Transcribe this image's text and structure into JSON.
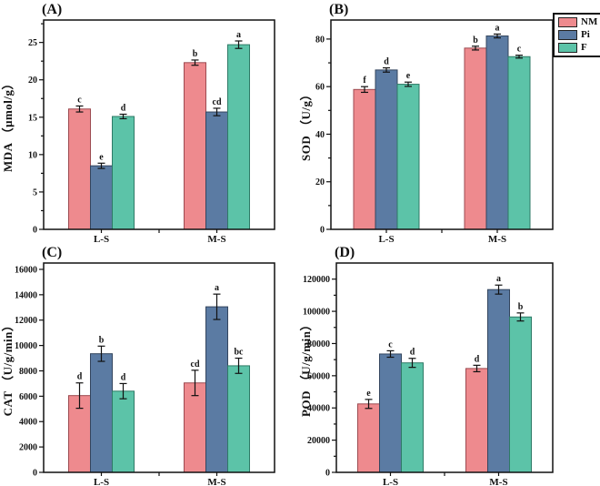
{
  "legend": {
    "entries": [
      {
        "label": "NM",
        "color": "#EE8A8E",
        "edge": "#9c4a50"
      },
      {
        "label": "Pi",
        "color": "#5B7BA3",
        "edge": "#33455e"
      },
      {
        "label": "F",
        "color": "#5CC3A8",
        "edge": "#2e7a66"
      }
    ],
    "position": "top-right"
  },
  "colors": {
    "axis": "#111111",
    "error_bar": "#111111",
    "background": "#ffffff"
  },
  "chart_data": [
    {
      "panel_label": "(A)",
      "type": "bar",
      "title": "",
      "ylabel": "MDA （μmol/g）",
      "xlabel": "",
      "categories": [
        "L-S",
        "M-S"
      ],
      "series": [
        {
          "name": "NM",
          "values": [
            16.1,
            22.3
          ],
          "errors": [
            0.4,
            0.35
          ],
          "letters": [
            "c",
            "b"
          ]
        },
        {
          "name": "Pi",
          "values": [
            8.5,
            15.7
          ],
          "errors": [
            0.35,
            0.5
          ],
          "letters": [
            "e",
            "cd"
          ]
        },
        {
          "name": "F",
          "values": [
            15.1,
            24.7
          ],
          "errors": [
            0.3,
            0.5
          ],
          "letters": [
            "d",
            "a"
          ]
        }
      ],
      "ylim": [
        0,
        28
      ],
      "yticks": [
        0,
        5,
        10,
        15,
        20,
        25
      ],
      "yminor_step": 2.5,
      "grid": false,
      "legend_shown": false
    },
    {
      "panel_label": "(B)",
      "type": "bar",
      "title": "",
      "ylabel": "SOD （U/g）",
      "xlabel": "",
      "categories": [
        "L-S",
        "M-S"
      ],
      "series": [
        {
          "name": "NM",
          "values": [
            58.8,
            76.2
          ],
          "errors": [
            1.2,
            0.8
          ],
          "letters": [
            "f",
            "b"
          ]
        },
        {
          "name": "Pi",
          "values": [
            67.0,
            81.3
          ],
          "errors": [
            0.9,
            0.8
          ],
          "letters": [
            "d",
            "a"
          ]
        },
        {
          "name": "F",
          "values": [
            61.0,
            72.6
          ],
          "errors": [
            0.9,
            0.6
          ],
          "letters": [
            "e",
            "c"
          ]
        }
      ],
      "ylim": [
        0,
        88
      ],
      "yticks": [
        0,
        20,
        40,
        60,
        80
      ],
      "yminor_step": 10,
      "grid": false,
      "legend_shown": true
    },
    {
      "panel_label": "(C)",
      "type": "bar",
      "title": "",
      "ylabel": "CAT （U/g/min）",
      "xlabel": "",
      "categories": [
        "L-S",
        "M-S"
      ],
      "series": [
        {
          "name": "NM",
          "values": [
            6050,
            7050
          ],
          "errors": [
            1000,
            1000
          ],
          "letters": [
            "d",
            "cd"
          ]
        },
        {
          "name": "Pi",
          "values": [
            9350,
            13050
          ],
          "errors": [
            600,
            1000
          ],
          "letters": [
            "b",
            "a"
          ]
        },
        {
          "name": "F",
          "values": [
            6400,
            8400
          ],
          "errors": [
            600,
            600
          ],
          "letters": [
            "d",
            "bc"
          ]
        }
      ],
      "ylim": [
        0,
        16500
      ],
      "yticks": [
        0,
        2000,
        4000,
        6000,
        8000,
        10000,
        12000,
        14000,
        16000
      ],
      "yminor_step": null,
      "grid": false,
      "legend_shown": false
    },
    {
      "panel_label": "(D)",
      "type": "bar",
      "title": "",
      "ylabel": "POD （U/g/min）",
      "xlabel": "",
      "categories": [
        "L-S",
        "M-S"
      ],
      "series": [
        {
          "name": "NM",
          "values": [
            42500,
            64500
          ],
          "errors": [
            2800,
            2000
          ],
          "letters": [
            "e",
            "d"
          ]
        },
        {
          "name": "Pi",
          "values": [
            73500,
            113500
          ],
          "errors": [
            2000,
            2800
          ],
          "letters": [
            "c",
            "a"
          ]
        },
        {
          "name": "F",
          "values": [
            68000,
            96500
          ],
          "errors": [
            2800,
            2500
          ],
          "letters": [
            "d",
            "b"
          ]
        }
      ],
      "ylim": [
        0,
        130000
      ],
      "yticks": [
        0,
        20000,
        40000,
        60000,
        80000,
        100000,
        120000
      ],
      "yminor_step": 10000,
      "grid": false,
      "legend_shown": false
    }
  ]
}
